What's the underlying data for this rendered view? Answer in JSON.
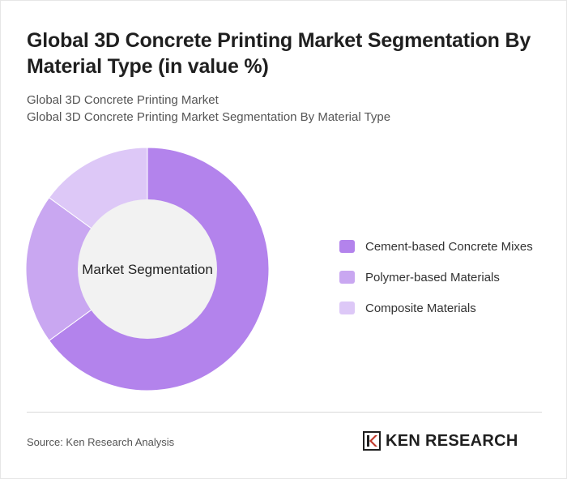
{
  "header": {
    "title": "Global 3D Concrete Printing Market Segmentation By Material Type (in value %)",
    "subtitle_1": "Global 3D Concrete Printing Market",
    "subtitle_2": "Global 3D Concrete Printing Market Segmentation By Material Type"
  },
  "chart_data": {
    "type": "pie",
    "variant": "donut",
    "center_label": "Market Segmentation",
    "categories": [
      "Cement-based Concrete Mixes",
      "Polymer-based Materials",
      "Composite Materials"
    ],
    "values": [
      65,
      20,
      15
    ],
    "colors": [
      "#b383ec",
      "#c9a7f1",
      "#ddc8f7"
    ],
    "legend_position": "right"
  },
  "footer": {
    "source": "Source: Ken Research Analysis",
    "logo_text": "KEN RESEARCH",
    "logo_icon": "ken-research-logo-icon"
  },
  "colors": {
    "hole": "#f2f2f2",
    "divider": "#d9d9d9"
  }
}
